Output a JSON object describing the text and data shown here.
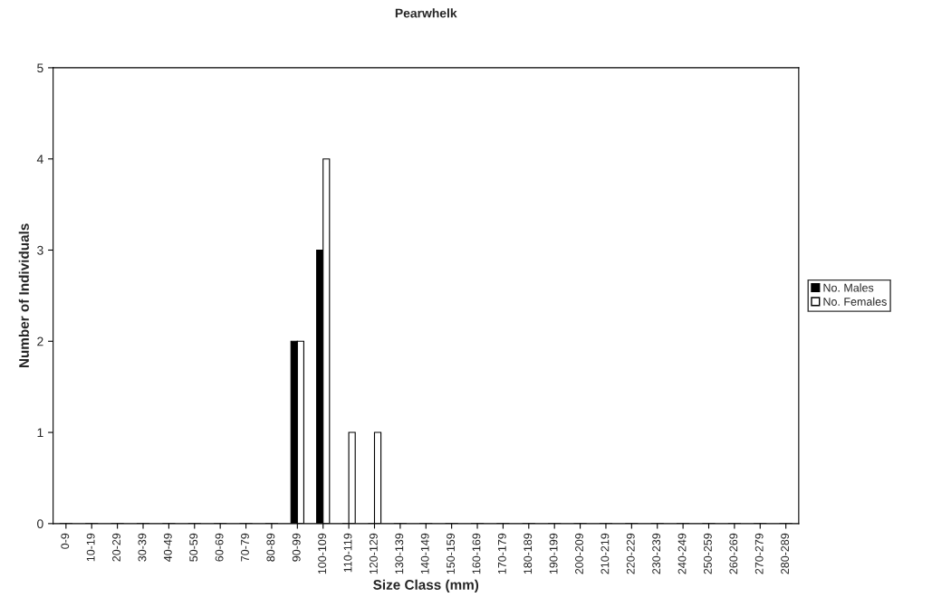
{
  "chart_data": {
    "type": "bar",
    "title": "Pearwhelk",
    "xlabel": "Size Class (mm)",
    "ylabel": "Number of Individuals",
    "categories": [
      "0-9",
      "10-19",
      "20-29",
      "30-39",
      "40-49",
      "50-59",
      "60-69",
      "70-79",
      "80-89",
      "90-99",
      "100-109",
      "110-119",
      "120-129",
      "130-139",
      "140-149",
      "150-159",
      "160-169",
      "170-179",
      "180-189",
      "190-199",
      "200-209",
      "210-219",
      "220-229",
      "230-239",
      "240-249",
      "250-259",
      "260-269",
      "270-279",
      "280-289"
    ],
    "series": [
      {
        "name": "No. Males",
        "color": "#000000",
        "values": [
          0,
          0,
          0,
          0,
          0,
          0,
          0,
          0,
          0,
          2,
          3,
          0,
          0,
          0,
          0,
          0,
          0,
          0,
          0,
          0,
          0,
          0,
          0,
          0,
          0,
          0,
          0,
          0,
          0
        ]
      },
      {
        "name": "No. Females",
        "color": "#ffffff",
        "values": [
          0,
          0,
          0,
          0,
          0,
          0,
          0,
          0,
          0,
          2,
          4,
          1,
          1,
          0,
          0,
          0,
          0,
          0,
          0,
          0,
          0,
          0,
          0,
          0,
          0,
          0,
          0,
          0,
          0
        ]
      }
    ],
    "ylim": [
      0,
      5
    ],
    "yticks": [
      0,
      1,
      2,
      3,
      4,
      5
    ],
    "grid": false,
    "legend": "right"
  }
}
